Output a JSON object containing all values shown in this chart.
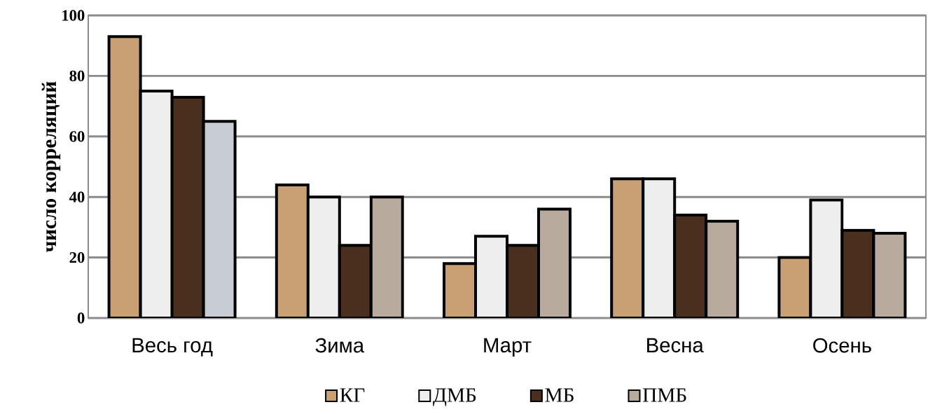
{
  "chart_data": {
    "type": "bar",
    "ylabel": "число корреляций",
    "categories": [
      "Весь год",
      "Зима",
      "Март",
      "Весна",
      "Осень"
    ],
    "series": [
      {
        "name": "КГ",
        "color": "#c8a074",
        "values": [
          93,
          44,
          18,
          46,
          20
        ]
      },
      {
        "name": "ДМБ",
        "color": "#eeeeee",
        "values": [
          75,
          40,
          27,
          46,
          39
        ]
      },
      {
        "name": "МБ",
        "color": "#4a2e1e",
        "values": [
          73,
          24,
          24,
          34,
          29
        ]
      },
      {
        "name": "ПМБ",
        "color": "#b8aa9c",
        "colors": [
          "#c8ccd4",
          "#b8aa9c",
          "#b8aa9c",
          "#b8aa9c",
          "#b8aa9c"
        ],
        "values": [
          65,
          40,
          36,
          32,
          28
        ]
      }
    ],
    "ylim": [
      0,
      100
    ],
    "yticks": [
      0,
      20,
      40,
      60,
      80,
      100
    ],
    "grid": "y",
    "legend": "bottom"
  }
}
